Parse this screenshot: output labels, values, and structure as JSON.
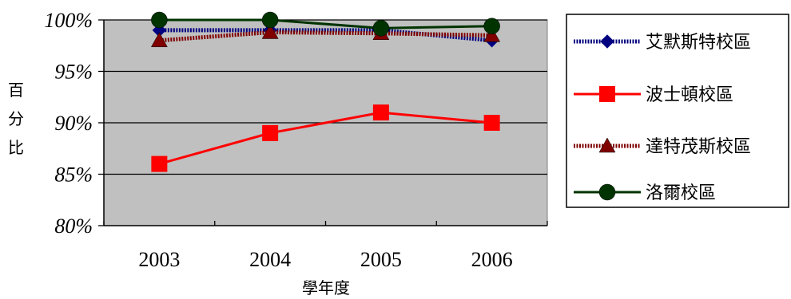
{
  "chart_data": {
    "type": "line",
    "title": "",
    "xlabel": "學年度",
    "ylabel": "百分比",
    "categories": [
      "2003",
      "2004",
      "2005",
      "2006"
    ],
    "ylim": [
      80,
      100
    ],
    "yticks": [
      "80%",
      "85%",
      "90%",
      "95%",
      "100%"
    ],
    "grid": true,
    "legend_position": "right",
    "plot_background": "#c0c0c0",
    "series": [
      {
        "name": "艾默斯特校區",
        "values": [
          99,
          99,
          99,
          98
        ],
        "color": "#000080",
        "line_style": "dotted-band",
        "marker": "diamond"
      },
      {
        "name": "波士頓校區",
        "values": [
          86,
          89,
          91,
          90
        ],
        "color": "#ff0000",
        "line_style": "solid",
        "marker": "square"
      },
      {
        "name": "達特茂斯校區",
        "values": [
          98,
          98.8,
          98.7,
          98.5
        ],
        "color": "#800000",
        "line_style": "dotted-band",
        "marker": "triangle"
      },
      {
        "name": "洛爾校區",
        "values": [
          100,
          100,
          99.2,
          99.4
        ],
        "color": "#003300",
        "line_style": "solid",
        "marker": "circle"
      }
    ]
  }
}
